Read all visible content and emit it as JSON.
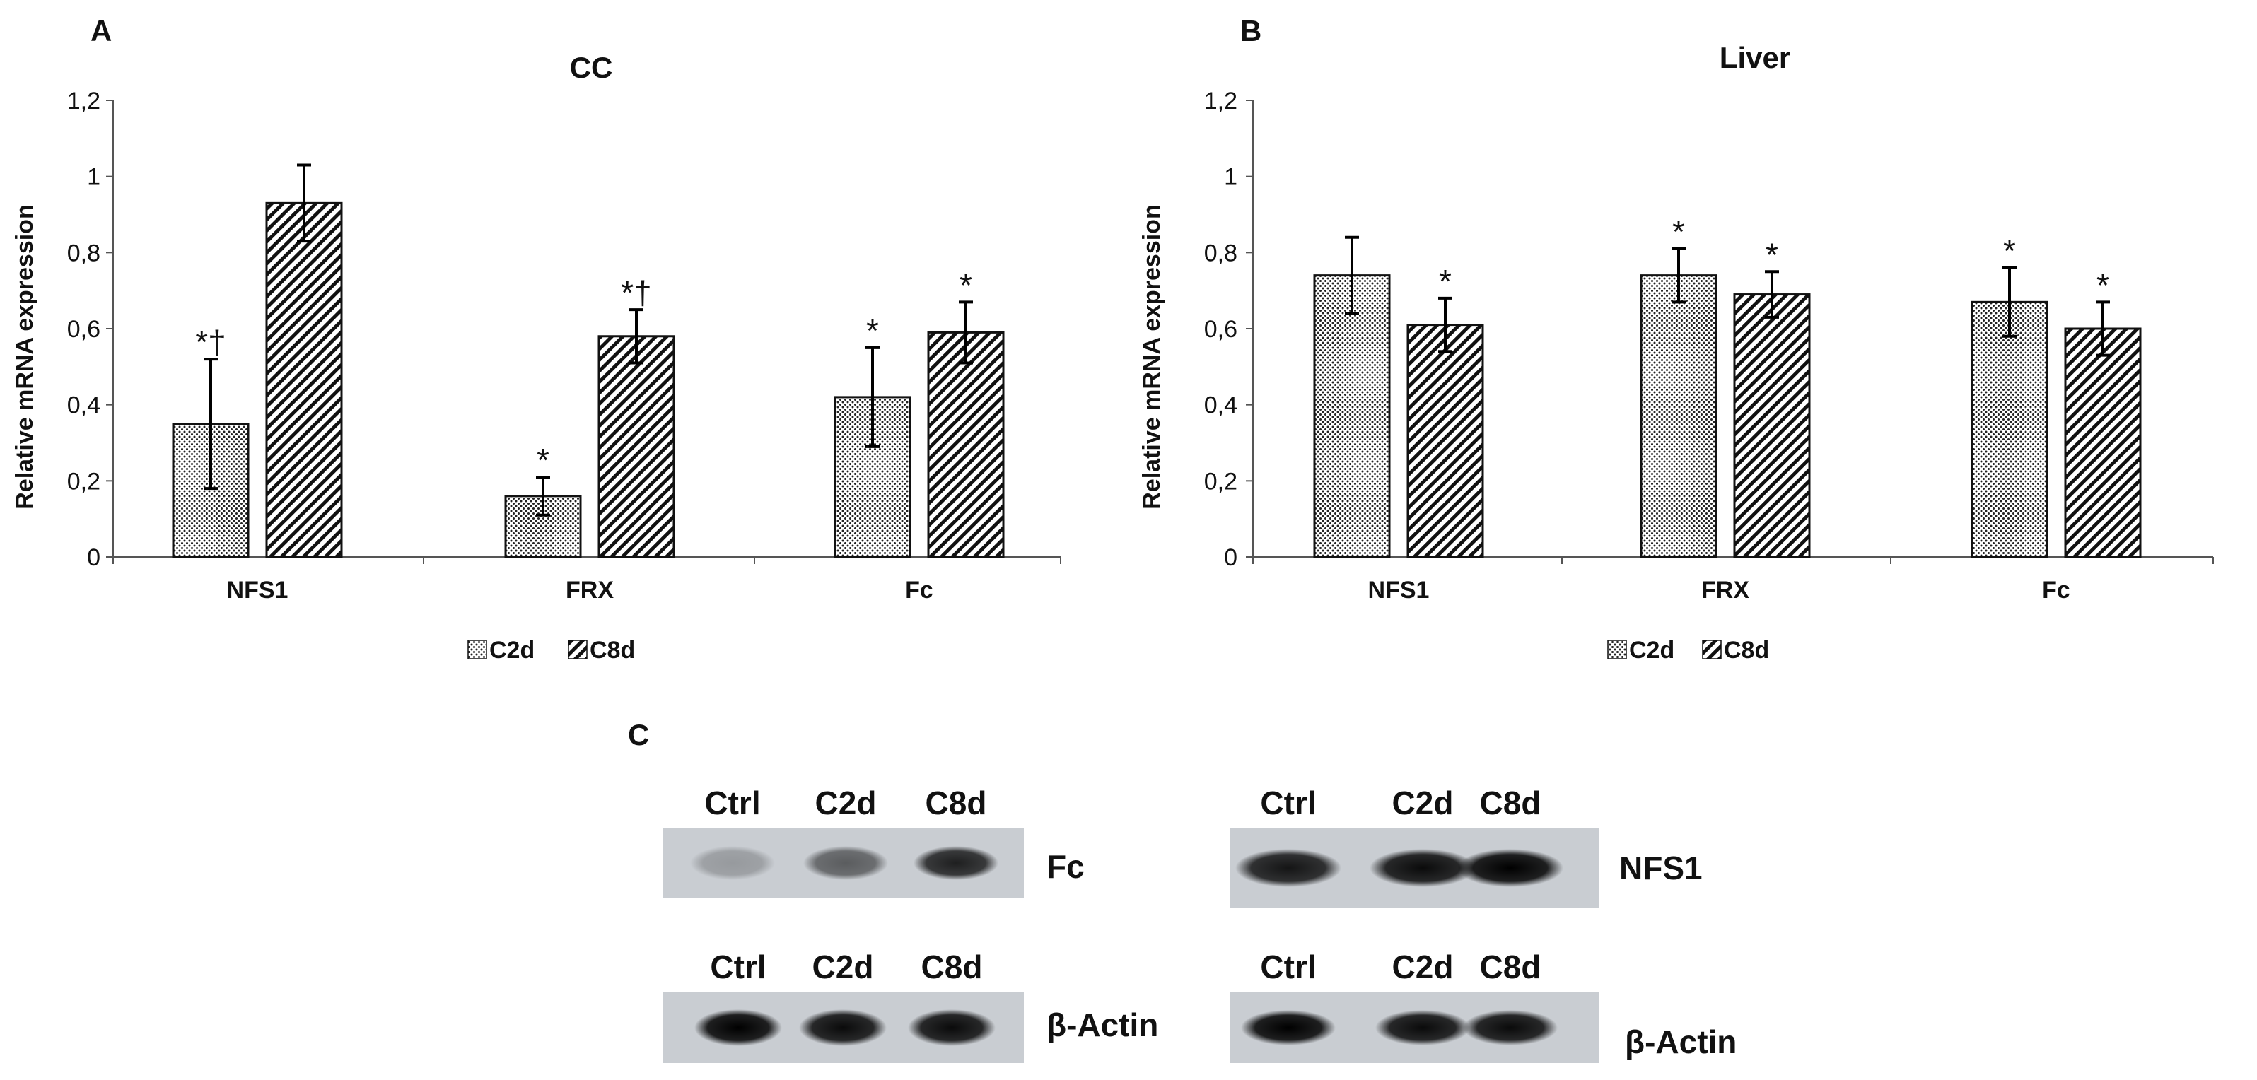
{
  "panel_C_letter": "C",
  "chart_data": [
    {
      "panel": "A",
      "type": "bar",
      "title": "CC",
      "ylabel": "Relative mRNA expression",
      "xlabel": "",
      "categories": [
        "NFS1",
        "FRX",
        "Fc"
      ],
      "ylim": [
        0,
        1.2
      ],
      "yticks": [
        "0",
        "0,2",
        "0,4",
        "0,6",
        "0,8",
        "1",
        "1,2"
      ],
      "yticks_values": [
        0,
        0.2,
        0.4,
        0.6,
        0.8,
        1.0,
        1.2
      ],
      "series": [
        {
          "name": "C2d",
          "values": [
            0.35,
            0.16,
            0.42
          ],
          "errors": [
            0.17,
            0.05,
            0.13
          ],
          "annotations": [
            "*†",
            "*",
            "*"
          ]
        },
        {
          "name": "C8d",
          "values": [
            0.93,
            0.58,
            0.59
          ],
          "errors": [
            0.1,
            0.07,
            0.08
          ],
          "annotations": [
            "",
            "*†",
            "*"
          ]
        }
      ],
      "legend_position": "bottom-center"
    },
    {
      "panel": "B",
      "type": "bar",
      "title": "Liver",
      "ylabel": "Relative mRNA expression",
      "xlabel": "",
      "categories": [
        "NFS1",
        "FRX",
        "Fc"
      ],
      "ylim": [
        0,
        1.2
      ],
      "yticks": [
        "0",
        "0,2",
        "0,4",
        "0,6",
        "0,8",
        "1",
        "1,2"
      ],
      "yticks_values": [
        0,
        0.2,
        0.4,
        0.6,
        0.8,
        1.0,
        1.2
      ],
      "series": [
        {
          "name": "C2d",
          "values": [
            0.74,
            0.74,
            0.67
          ],
          "errors": [
            0.1,
            0.07,
            0.09
          ],
          "annotations": [
            "",
            "*",
            "*"
          ]
        },
        {
          "name": "C8d",
          "values": [
            0.61,
            0.69,
            0.6
          ],
          "errors": [
            0.07,
            0.06,
            0.07
          ],
          "annotations": [
            "*",
            "*",
            "*"
          ]
        }
      ],
      "legend_position": "bottom-center"
    }
  ],
  "blots": [
    {
      "name": "fc-blot",
      "lanes": [
        "Ctrl",
        "C2d",
        "C8d"
      ],
      "label": "Fc",
      "intensity": [
        0.25,
        0.55,
        0.85
      ]
    },
    {
      "name": "fc-actin-blot",
      "lanes": [
        "Ctrl",
        "C2d",
        "C8d"
      ],
      "label": "β-Actin",
      "intensity": [
        1.0,
        0.95,
        0.95
      ]
    },
    {
      "name": "nfs1-blot",
      "lanes": [
        "Ctrl",
        "C2d",
        "C8d"
      ],
      "label": "NFS1",
      "intensity": [
        0.9,
        0.95,
        1.0
      ]
    },
    {
      "name": "nfs1-actin-blot",
      "lanes": [
        "Ctrl",
        "C2d",
        "C8d"
      ],
      "label": "β-Actin",
      "intensity": [
        1.0,
        0.95,
        0.95
      ]
    }
  ]
}
